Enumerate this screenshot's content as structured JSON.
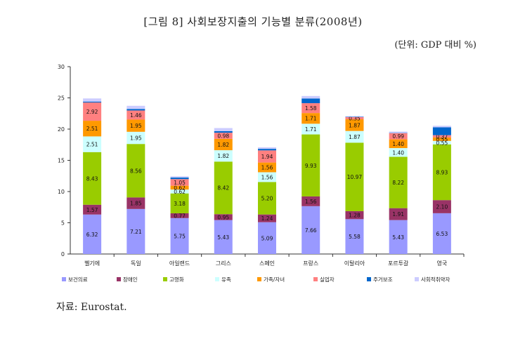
{
  "title": "[그림 8] 사회보장지출의 기능별 분류(2008년)",
  "unit_label": "(단위: GDP 대비 %)",
  "source_label": "자료: Eurostat.",
  "chart_data": {
    "type": "bar",
    "stacked": true,
    "ylim": [
      0,
      30
    ],
    "yticks": [
      0,
      5,
      10,
      15,
      20,
      25,
      30
    ],
    "grid": false,
    "legend_position": "bottom",
    "categories": [
      "벨기에",
      "독일",
      "아일랜드",
      "그리스",
      "스페인",
      "프랑스",
      "이탈리아",
      "포르투갈",
      "영국"
    ],
    "series": [
      {
        "name": "보건의료",
        "color": "#9999ff",
        "values": [
          6.32,
          7.21,
          5.75,
          5.43,
          5.09,
          7.66,
          5.58,
          5.43,
          6.53
        ]
      },
      {
        "name": "장애인",
        "color": "#993366",
        "values": [
          1.57,
          1.85,
          0.77,
          0.95,
          1.24,
          1.56,
          1.28,
          1.91,
          2.1
        ]
      },
      {
        "name": "고령화",
        "color": "#99cc00",
        "values": [
          8.43,
          8.56,
          3.18,
          8.42,
          5.2,
          9.93,
          10.97,
          8.22,
          8.93
        ]
      },
      {
        "name": "유족",
        "color": "#ccffff",
        "values": [
          2.51,
          1.95,
          0.62,
          1.82,
          1.56,
          1.71,
          1.87,
          1.4,
          0.55
        ]
      },
      {
        "name": "가족/자녀",
        "color": "#ff9900",
        "values": [
          2.51,
          1.95,
          0.62,
          1.82,
          1.56,
          1.71,
          1.87,
          1.4,
          0.55
        ]
      },
      {
        "name": "실업자",
        "color": "#ff8080",
        "values": [
          2.92,
          1.46,
          1.05,
          0.98,
          1.94,
          1.58,
          0.35,
          0.99,
          0.37
        ]
      },
      {
        "name": "주거보조",
        "color": "#0066cc",
        "values": [
          0.15,
          0.25,
          0.25,
          0.25,
          0.25,
          0.75,
          0.05,
          0.05,
          1.25
        ]
      },
      {
        "name": "사회적취약자",
        "color": "#ccccff",
        "values": [
          0.5,
          0.5,
          0.2,
          0.5,
          0.25,
          0.4,
          0.1,
          0.2,
          0.25
        ]
      }
    ],
    "label_series": [
      0,
      1,
      2,
      3,
      4,
      5
    ]
  }
}
